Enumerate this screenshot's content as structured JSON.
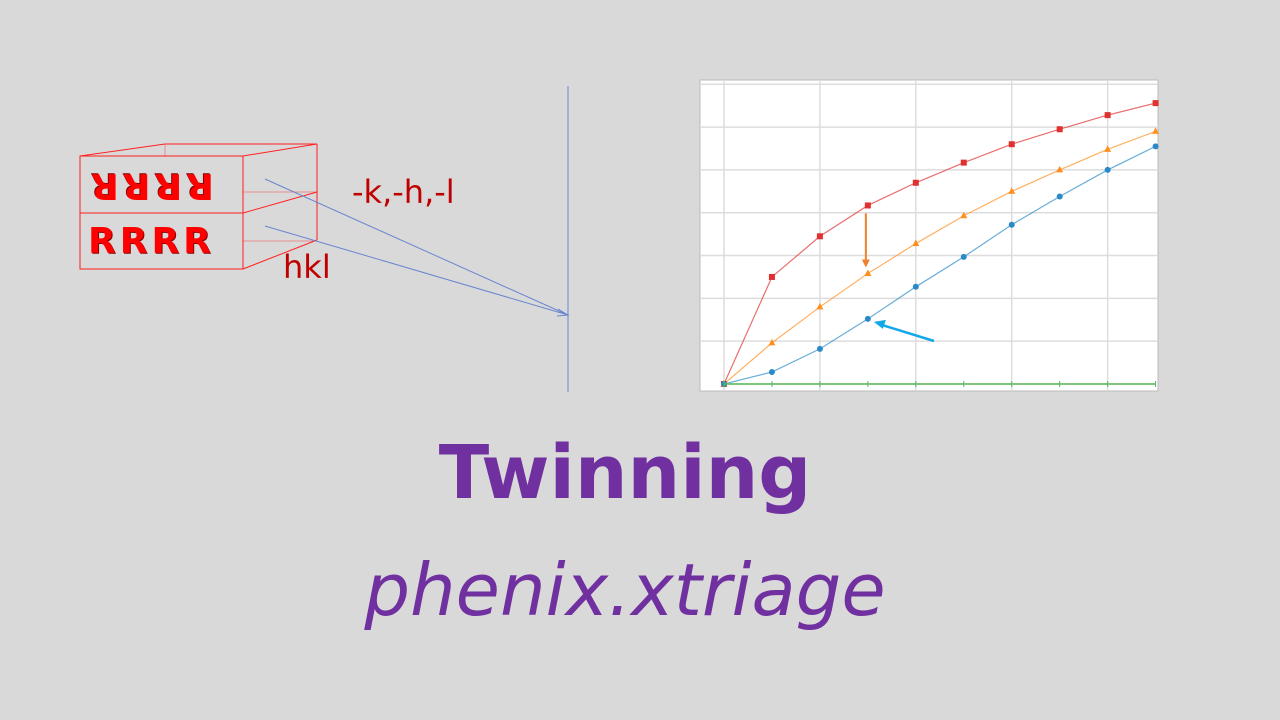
{
  "diagram": {
    "top_row": "RRRR",
    "bottom_row": "RRRR",
    "label_twin": "-k,-h,-l",
    "label_hkl": "hkl"
  },
  "title": "Twinning",
  "subtitle": "phenix.xtriage",
  "chart_data": {
    "type": "line",
    "title": "",
    "xlabel": "",
    "ylabel": "",
    "x": [
      0,
      1,
      2,
      3,
      4,
      5,
      6,
      7,
      8,
      9
    ],
    "xlim": [
      -0.5,
      9.05
    ],
    "ylim": [
      0,
      7.1
    ],
    "grid": true,
    "series": [
      {
        "color": "#e03030",
        "marker": "square",
        "values": [
          0,
          2.5,
          3.45,
          4.17,
          4.7,
          5.17,
          5.6,
          5.95,
          6.28,
          6.56
        ]
      },
      {
        "color": "#ff9020",
        "marker": "triangle",
        "values": [
          0,
          0.96,
          1.8,
          2.58,
          3.28,
          3.93,
          4.5,
          5.0,
          5.48,
          5.9
        ]
      },
      {
        "color": "#2a8ac8",
        "marker": "circle",
        "values": [
          0,
          0.28,
          0.82,
          1.52,
          2.27,
          2.97,
          3.72,
          4.38,
          5.0,
          5.55
        ]
      },
      {
        "color": "#5cb85c",
        "marker": "tick",
        "values": [
          0,
          0,
          0,
          0,
          0,
          0,
          0,
          0,
          0,
          0
        ]
      }
    ],
    "annotations": [
      {
        "type": "arrow",
        "color": "#f08030",
        "direction": "down",
        "from_series": 0,
        "to_series": 1,
        "x": 3
      },
      {
        "type": "arrow",
        "color": "#10a8e8",
        "points_to_series": 2,
        "x": 3
      }
    ]
  }
}
